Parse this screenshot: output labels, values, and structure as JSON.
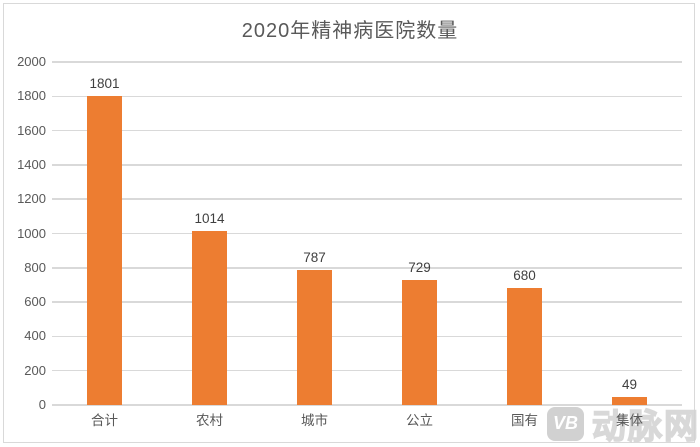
{
  "chart_data": {
    "type": "bar",
    "title": "2020年精神病医院数量",
    "categories": [
      "合计",
      "农村",
      "城市",
      "公立",
      "国有",
      "集体"
    ],
    "values": [
      1801,
      1014,
      787,
      729,
      680,
      49
    ],
    "xlabel": "",
    "ylabel": "",
    "ylim": [
      0,
      2000
    ],
    "ytick_step": 200,
    "grid": true,
    "legend": "none",
    "bar_color": "#ed7d31",
    "gridline_color": "#d9d9d9",
    "value_label_color": "#404040",
    "axis_text_color": "#595959",
    "frame_color": "#d9d9d9"
  },
  "watermark": {
    "logo_text": "VB",
    "site_name": "动脉网"
  }
}
